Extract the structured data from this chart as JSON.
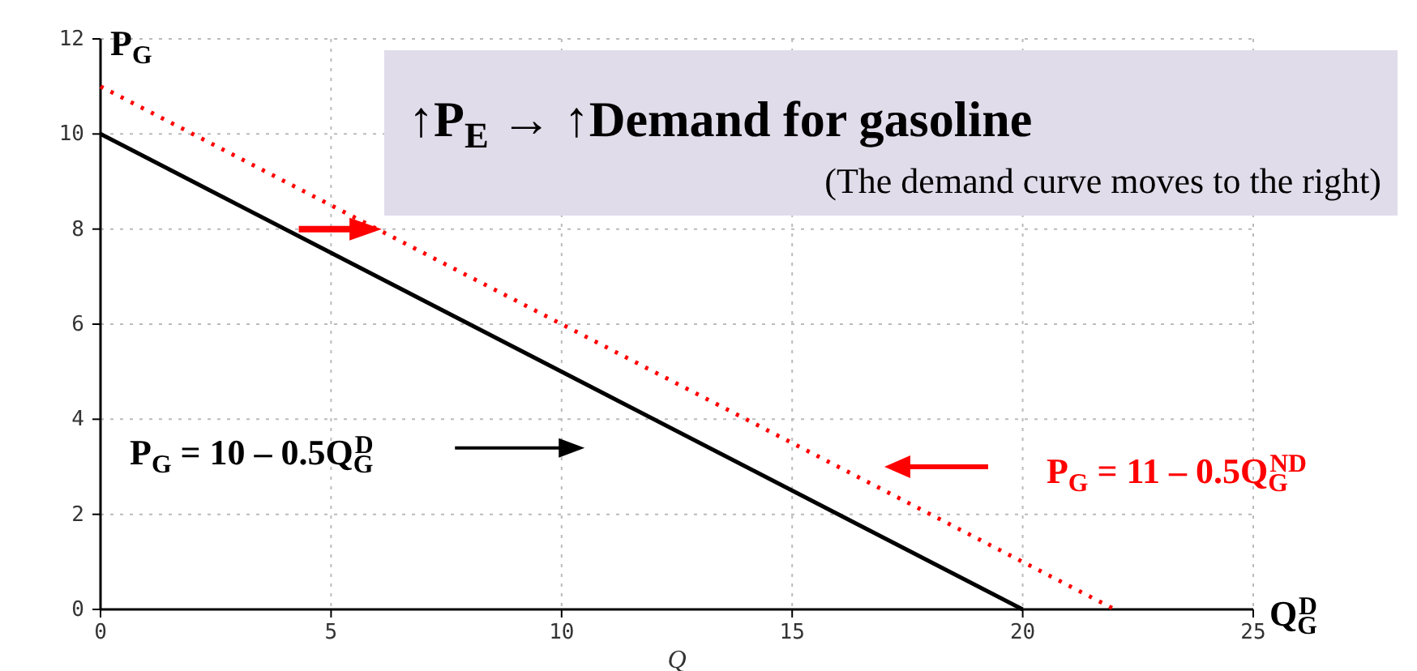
{
  "chart_data": {
    "type": "line",
    "title": "↑P$_{E}$ → ↑Demand for gasoline",
    "subtitle": "(The demand curve moves to the right)",
    "ylabel": "P$_{G}$",
    "xlabel": "Q",
    "xlim": [
      0,
      25
    ],
    "xticks": [
      0,
      5,
      10,
      15,
      20,
      25
    ],
    "ylim": [
      0,
      12
    ],
    "yticks": [
      0,
      2,
      4,
      6,
      8,
      10,
      12
    ],
    "grid": true,
    "marker": "none",
    "series": [
      {
        "color": "#000000",
        "x": [
          0,
          20
        ],
        "values": [
          10,
          0
        ],
        "line_style": "solid"
      },
      {
        "color": "#ff0000",
        "x": [
          0,
          22
        ],
        "values": [
          11,
          0
        ],
        "line_style": "dotted"
      }
    ],
    "annotations": [
      "P$_{G}$ = 10 – 0.5Q$_{G}$$^{D}$",
      "P$_{G}$ = 11 – 0.5Q$_{G}$$^{ND}$",
      "Q$_{G}$$^{D}$"
    ]
  }
}
